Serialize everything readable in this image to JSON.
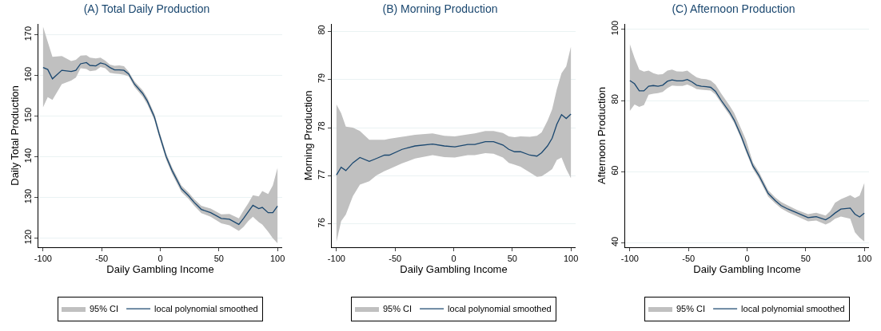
{
  "chart_data": [
    {
      "type": "line",
      "title": "(A) Total Daily Production",
      "xlabel": "Daily Gambling Income",
      "ylabel": "Daily Total Production",
      "legend": "bottom",
      "legend_title": "95% CI",
      "grid": "y",
      "marker": "none",
      "line_style": "solid",
      "xlim": [
        -104,
        104
      ],
      "xticks": [
        -100,
        -50,
        0,
        50,
        100
      ],
      "ylim": [
        117.8,
        172.7
      ],
      "yticks": [
        120,
        130,
        140,
        150,
        160,
        170
      ],
      "x": [
        -100,
        -96,
        -92,
        -84,
        -76,
        -72,
        -68,
        -63,
        -60,
        -55,
        -51,
        -47,
        -43,
        -39,
        -35,
        -31,
        -27,
        -22,
        -15,
        -11,
        -5,
        -1,
        5,
        10,
        18,
        24,
        29,
        35,
        43,
        52,
        59,
        67,
        71,
        75,
        79,
        84,
        87,
        92,
        96,
        100
      ],
      "series": [
        {
          "name": "local polynomial smoothed",
          "color": "#1a476f",
          "values": [
            162.0,
            161.5,
            159.2,
            161.3,
            161.0,
            161.3,
            162.9,
            163.2,
            162.5,
            162.4,
            163.1,
            162.8,
            162.0,
            161.4,
            161.4,
            161.3,
            160.4,
            157.9,
            155.6,
            153.7,
            149.8,
            145.7,
            140.1,
            136.7,
            132.2,
            130.5,
            128.8,
            127.1,
            126.3,
            124.9,
            124.7,
            123.4,
            124.9,
            126.5,
            128.1,
            127.3,
            127.6,
            126.3,
            126.3,
            127.9
          ],
          "upper": [
            172.0,
            168.3,
            164.6,
            164.8,
            163.6,
            163.9,
            164.9,
            165.0,
            164.4,
            164.2,
            164.4,
            163.7,
            162.7,
            162.4,
            162.5,
            162.3,
            161.0,
            158.6,
            156.4,
            154.5,
            150.6,
            146.5,
            140.9,
            137.5,
            133.0,
            131.3,
            129.6,
            128.0,
            127.3,
            125.9,
            126.0,
            124.9,
            126.8,
            128.6,
            130.6,
            130.3,
            131.6,
            130.9,
            133.0,
            137.3
          ],
          "lower": [
            152.2,
            154.7,
            154.0,
            157.9,
            158.8,
            159.5,
            161.8,
            161.6,
            161.1,
            161.3,
            162.1,
            161.8,
            160.7,
            160.5,
            160.4,
            160.2,
            159.8,
            157.2,
            154.8,
            152.9,
            149.0,
            144.9,
            139.3,
            135.9,
            131.4,
            129.7,
            128.0,
            126.2,
            125.3,
            123.7,
            123.2,
            121.8,
            122.8,
            124.2,
            125.3,
            124.0,
            123.4,
            121.6,
            120.0,
            118.8
          ]
        }
      ]
    },
    {
      "type": "line",
      "title": "(B) Morning Production",
      "xlabel": "Daily Gambling Income",
      "ylabel": "Morning Production",
      "legend": "bottom",
      "legend_title": "95% CI",
      "grid": "y",
      "marker": "none",
      "line_style": "solid",
      "xlim": [
        -104,
        104
      ],
      "xticks": [
        -100,
        -50,
        0,
        50,
        100
      ],
      "ylim": [
        75.52,
        80.15
      ],
      "yticks": [
        76,
        77,
        78,
        79,
        80
      ],
      "x": [
        -100,
        -96,
        -92,
        -86,
        -80,
        -72,
        -66,
        -59,
        -55,
        -44,
        -33,
        -18,
        -8,
        1,
        12,
        18,
        27,
        34,
        42,
        47,
        52,
        57,
        65,
        71,
        75,
        80,
        84,
        88,
        92,
        96,
        100
      ],
      "series": [
        {
          "name": "local polynomial smoothed",
          "color": "#1a476f",
          "values": [
            77.02,
            77.18,
            77.11,
            77.27,
            77.38,
            77.3,
            77.36,
            77.43,
            77.43,
            77.55,
            77.62,
            77.66,
            77.62,
            77.6,
            77.65,
            77.65,
            77.71,
            77.71,
            77.64,
            77.55,
            77.5,
            77.5,
            77.43,
            77.41,
            77.48,
            77.62,
            77.78,
            78.07,
            78.27,
            78.19,
            78.28
          ],
          "upper": [
            78.48,
            78.3,
            78.02,
            78.0,
            77.93,
            77.75,
            77.75,
            77.75,
            77.77,
            77.81,
            77.85,
            77.88,
            77.83,
            77.82,
            77.86,
            77.88,
            77.93,
            77.93,
            77.89,
            77.82,
            77.8,
            77.82,
            77.81,
            77.83,
            77.9,
            78.14,
            78.38,
            78.8,
            79.13,
            79.27,
            79.68
          ],
          "lower": [
            75.63,
            76.06,
            76.2,
            76.58,
            76.82,
            76.89,
            77.01,
            77.1,
            77.14,
            77.26,
            77.36,
            77.43,
            77.39,
            77.38,
            77.43,
            77.43,
            77.47,
            77.46,
            77.38,
            77.27,
            77.23,
            77.19,
            77.07,
            76.98,
            76.99,
            77.07,
            77.14,
            77.33,
            77.38,
            77.14,
            76.95
          ]
        }
      ]
    },
    {
      "type": "line",
      "title": "(C) Afternoon Production",
      "xlabel": "Daily Gambling Income",
      "ylabel": "Afternoon Production",
      "legend": "bottom",
      "legend_title": "95% CI",
      "grid": "y",
      "marker": "none",
      "line_style": "solid",
      "xlim": [
        -104,
        104
      ],
      "xticks": [
        -100,
        -50,
        0,
        50,
        100
      ],
      "ylim": [
        38.8,
        101.5
      ],
      "yticks": [
        40,
        60,
        80,
        100
      ],
      "x": [
        -100,
        -96,
        -92,
        -88,
        -84,
        -80,
        -76,
        -72,
        -68,
        -64,
        -60,
        -55,
        -51,
        -47,
        -43,
        -39,
        -35,
        -31,
        -27,
        -22,
        -15,
        -11,
        -5,
        -1,
        5,
        10,
        18,
        24,
        29,
        35,
        43,
        52,
        59,
        67,
        71,
        75,
        80,
        88,
        92,
        96,
        100
      ],
      "series": [
        {
          "name": "local polynomial smoothed",
          "color": "#1a476f",
          "values": [
            85.6,
            84.7,
            82.7,
            82.7,
            84.0,
            84.2,
            84.0,
            84.3,
            85.4,
            85.8,
            85.5,
            85.5,
            85.9,
            85.2,
            84.3,
            84.0,
            83.9,
            83.7,
            82.6,
            80.0,
            76.8,
            74.5,
            70.0,
            66.5,
            61.6,
            59.0,
            53.9,
            51.9,
            50.5,
            49.5,
            48.4,
            47.1,
            47.4,
            46.5,
            47.3,
            48.4,
            49.5,
            49.8,
            48.1,
            47.3,
            48.4
          ],
          "upper": [
            95.8,
            91.9,
            88.7,
            88.1,
            88.4,
            87.7,
            87.3,
            87.4,
            88.4,
            88.7,
            88.2,
            88.1,
            88.4,
            87.4,
            86.5,
            86.1,
            86.0,
            85.6,
            84.5,
            81.9,
            78.6,
            76.5,
            72.0,
            69.0,
            62.6,
            60.0,
            54.8,
            52.8,
            51.5,
            50.5,
            49.2,
            48.1,
            48.5,
            47.7,
            49.0,
            51.3,
            52.3,
            53.4,
            52.6,
            53.3,
            56.8
          ],
          "lower": [
            77.1,
            78.9,
            78.2,
            78.7,
            81.6,
            81.9,
            82.1,
            82.4,
            83.5,
            84.2,
            84.1,
            84.1,
            84.5,
            83.9,
            83.2,
            83.0,
            82.9,
            82.8,
            81.7,
            79.2,
            75.9,
            73.7,
            69.2,
            65.6,
            60.8,
            58.1,
            53.0,
            51.1,
            49.7,
            48.6,
            47.4,
            46.1,
            46.3,
            45.2,
            45.8,
            46.8,
            47.4,
            46.8,
            43.0,
            41.5,
            40.4
          ]
        }
      ]
    }
  ]
}
